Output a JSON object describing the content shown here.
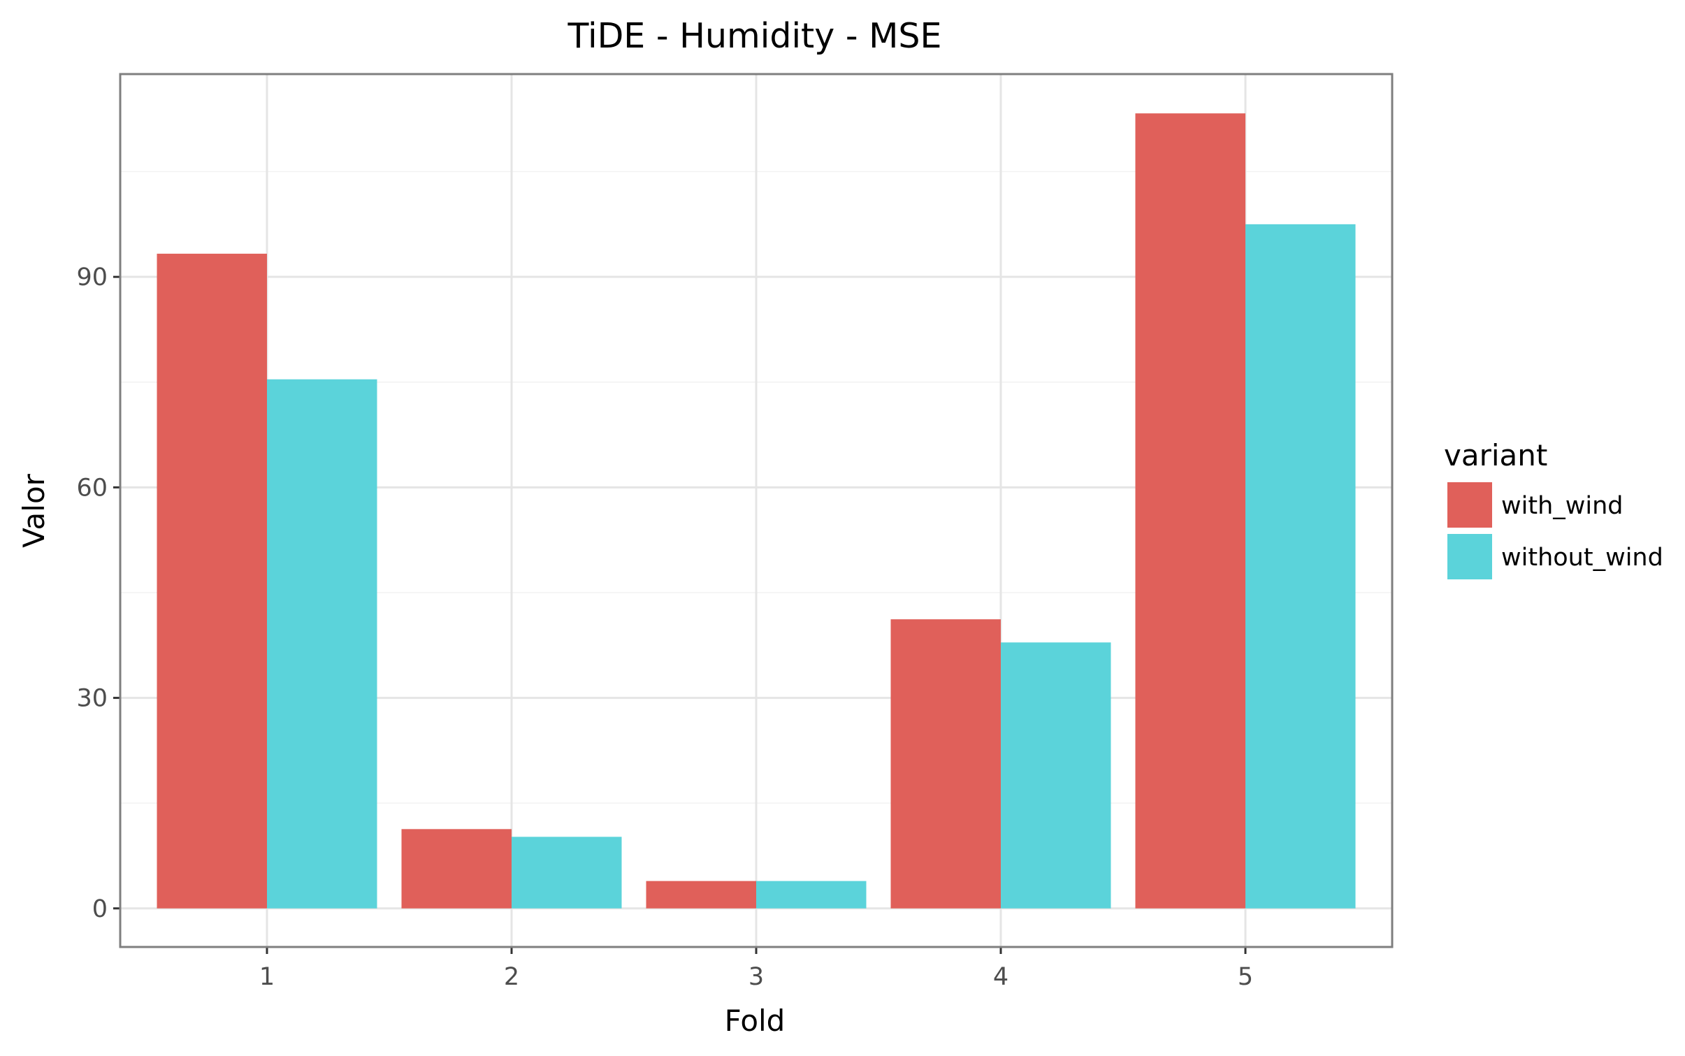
{
  "chart_data": {
    "type": "bar",
    "title": "TiDE - Humidity - MSE",
    "xlabel": "Fold",
    "ylabel": "Valor",
    "categories": [
      "1",
      "2",
      "3",
      "4",
      "5"
    ],
    "series": [
      {
        "name": "with_wind",
        "color": "#E0605A",
        "values": [
          93.3,
          11.3,
          3.9,
          41.2,
          113.3
        ]
      },
      {
        "name": "without_wind",
        "color": "#5BD3DA",
        "values": [
          75.4,
          10.2,
          3.9,
          37.9,
          97.5
        ]
      }
    ],
    "yticks": [
      0,
      30,
      60,
      90
    ],
    "ylim": [
      -5.5,
      118.9
    ],
    "grid": true,
    "legend": {
      "title": "variant",
      "position": "right"
    }
  }
}
